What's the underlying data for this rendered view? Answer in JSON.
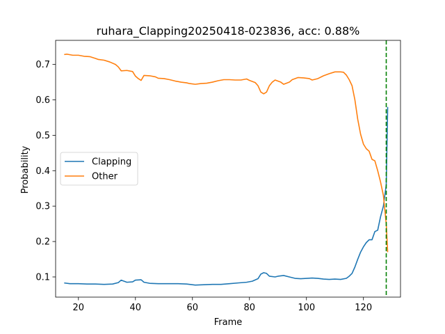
{
  "chart_data": {
    "type": "line",
    "title": "ruhara_Clapping20250418-023836,  acc: 0.88%",
    "xlabel": "Frame",
    "ylabel": "Probability",
    "xlim": [
      12,
      133
    ],
    "ylim": [
      0.043,
      0.768
    ],
    "xticks": [
      20,
      40,
      60,
      80,
      100,
      120
    ],
    "yticks": [
      0.1,
      0.2,
      0.3,
      0.4,
      0.5,
      0.6,
      0.7
    ],
    "xtick_labels": [
      "20",
      "40",
      "60",
      "80",
      "100",
      "120"
    ],
    "ytick_labels": [
      "0.1",
      "0.2",
      "0.3",
      "0.4",
      "0.5",
      "0.6",
      "0.7"
    ],
    "grid": false,
    "legend_position": "center-left",
    "vline": {
      "x": 128,
      "color": "#008000",
      "style": "dashed"
    },
    "series": [
      {
        "name": "Clapping",
        "color": "#1f77b4",
        "points": [
          [
            15,
            0.083
          ],
          [
            17,
            0.081
          ],
          [
            20,
            0.081
          ],
          [
            23,
            0.08
          ],
          [
            26,
            0.08
          ],
          [
            29,
            0.079
          ],
          [
            32,
            0.08
          ],
          [
            34,
            0.084
          ],
          [
            35,
            0.091
          ],
          [
            36,
            0.088
          ],
          [
            37,
            0.085
          ],
          [
            39,
            0.086
          ],
          [
            40,
            0.091
          ],
          [
            42,
            0.092
          ],
          [
            43,
            0.085
          ],
          [
            45,
            0.082
          ],
          [
            48,
            0.081
          ],
          [
            52,
            0.081
          ],
          [
            55,
            0.081
          ],
          [
            58,
            0.08
          ],
          [
            61,
            0.077
          ],
          [
            64,
            0.078
          ],
          [
            67,
            0.079
          ],
          [
            70,
            0.079
          ],
          [
            73,
            0.081
          ],
          [
            76,
            0.083
          ],
          [
            79,
            0.085
          ],
          [
            81,
            0.088
          ],
          [
            83,
            0.095
          ],
          [
            84,
            0.108
          ],
          [
            85,
            0.112
          ],
          [
            86,
            0.11
          ],
          [
            87,
            0.102
          ],
          [
            89,
            0.1
          ],
          [
            90,
            0.102
          ],
          [
            92,
            0.104
          ],
          [
            94,
            0.1
          ],
          [
            96,
            0.096
          ],
          [
            98,
            0.095
          ],
          [
            100,
            0.096
          ],
          [
            102,
            0.097
          ],
          [
            104,
            0.096
          ],
          [
            106,
            0.094
          ],
          [
            108,
            0.093
          ],
          [
            110,
            0.094
          ],
          [
            112,
            0.093
          ],
          [
            114,
            0.096
          ],
          [
            115,
            0.102
          ],
          [
            116,
            0.11
          ],
          [
            117,
            0.128
          ],
          [
            118,
            0.15
          ],
          [
            119,
            0.17
          ],
          [
            120,
            0.185
          ],
          [
            121,
            0.197
          ],
          [
            122,
            0.205
          ],
          [
            123,
            0.205
          ],
          [
            124,
            0.228
          ],
          [
            125,
            0.232
          ],
          [
            126,
            0.27
          ],
          [
            127,
            0.3
          ],
          [
            128,
            0.36
          ],
          [
            128.5,
            0.58
          ]
        ]
      },
      {
        "name": "Other",
        "color": "#ff7f0e",
        "points": [
          [
            15,
            0.728
          ],
          [
            16,
            0.729
          ],
          [
            18,
            0.726
          ],
          [
            20,
            0.726
          ],
          [
            22,
            0.723
          ],
          [
            24,
            0.722
          ],
          [
            26,
            0.717
          ],
          [
            27,
            0.714
          ],
          [
            29,
            0.712
          ],
          [
            31,
            0.707
          ],
          [
            33,
            0.7
          ],
          [
            34,
            0.693
          ],
          [
            35,
            0.682
          ],
          [
            37,
            0.683
          ],
          [
            39,
            0.68
          ],
          [
            40,
            0.667
          ],
          [
            41,
            0.66
          ],
          [
            42,
            0.655
          ],
          [
            43,
            0.669
          ],
          [
            45,
            0.668
          ],
          [
            47,
            0.665
          ],
          [
            48,
            0.661
          ],
          [
            50,
            0.66
          ],
          [
            52,
            0.657
          ],
          [
            54,
            0.653
          ],
          [
            56,
            0.65
          ],
          [
            58,
            0.648
          ],
          [
            59,
            0.646
          ],
          [
            61,
            0.644
          ],
          [
            63,
            0.646
          ],
          [
            65,
            0.647
          ],
          [
            67,
            0.65
          ],
          [
            69,
            0.654
          ],
          [
            71,
            0.657
          ],
          [
            73,
            0.657
          ],
          [
            75,
            0.656
          ],
          [
            77,
            0.656
          ],
          [
            79,
            0.659
          ],
          [
            80,
            0.655
          ],
          [
            82,
            0.649
          ],
          [
            83,
            0.64
          ],
          [
            84,
            0.622
          ],
          [
            85,
            0.617
          ],
          [
            86,
            0.622
          ],
          [
            87,
            0.64
          ],
          [
            88,
            0.65
          ],
          [
            89,
            0.656
          ],
          [
            91,
            0.65
          ],
          [
            92,
            0.644
          ],
          [
            94,
            0.65
          ],
          [
            95,
            0.657
          ],
          [
            97,
            0.663
          ],
          [
            99,
            0.662
          ],
          [
            101,
            0.66
          ],
          [
            102,
            0.656
          ],
          [
            104,
            0.66
          ],
          [
            106,
            0.668
          ],
          [
            108,
            0.674
          ],
          [
            110,
            0.679
          ],
          [
            112,
            0.679
          ],
          [
            113,
            0.678
          ],
          [
            114,
            0.67
          ],
          [
            115,
            0.657
          ],
          [
            116,
            0.64
          ],
          [
            117,
            0.6
          ],
          [
            118,
            0.545
          ],
          [
            119,
            0.503
          ],
          [
            120,
            0.475
          ],
          [
            121,
            0.462
          ],
          [
            122,
            0.455
          ],
          [
            123,
            0.432
          ],
          [
            124,
            0.428
          ],
          [
            125,
            0.4
          ],
          [
            126,
            0.368
          ],
          [
            127,
            0.33
          ],
          [
            128,
            0.25
          ],
          [
            128.5,
            0.17
          ]
        ]
      }
    ]
  }
}
